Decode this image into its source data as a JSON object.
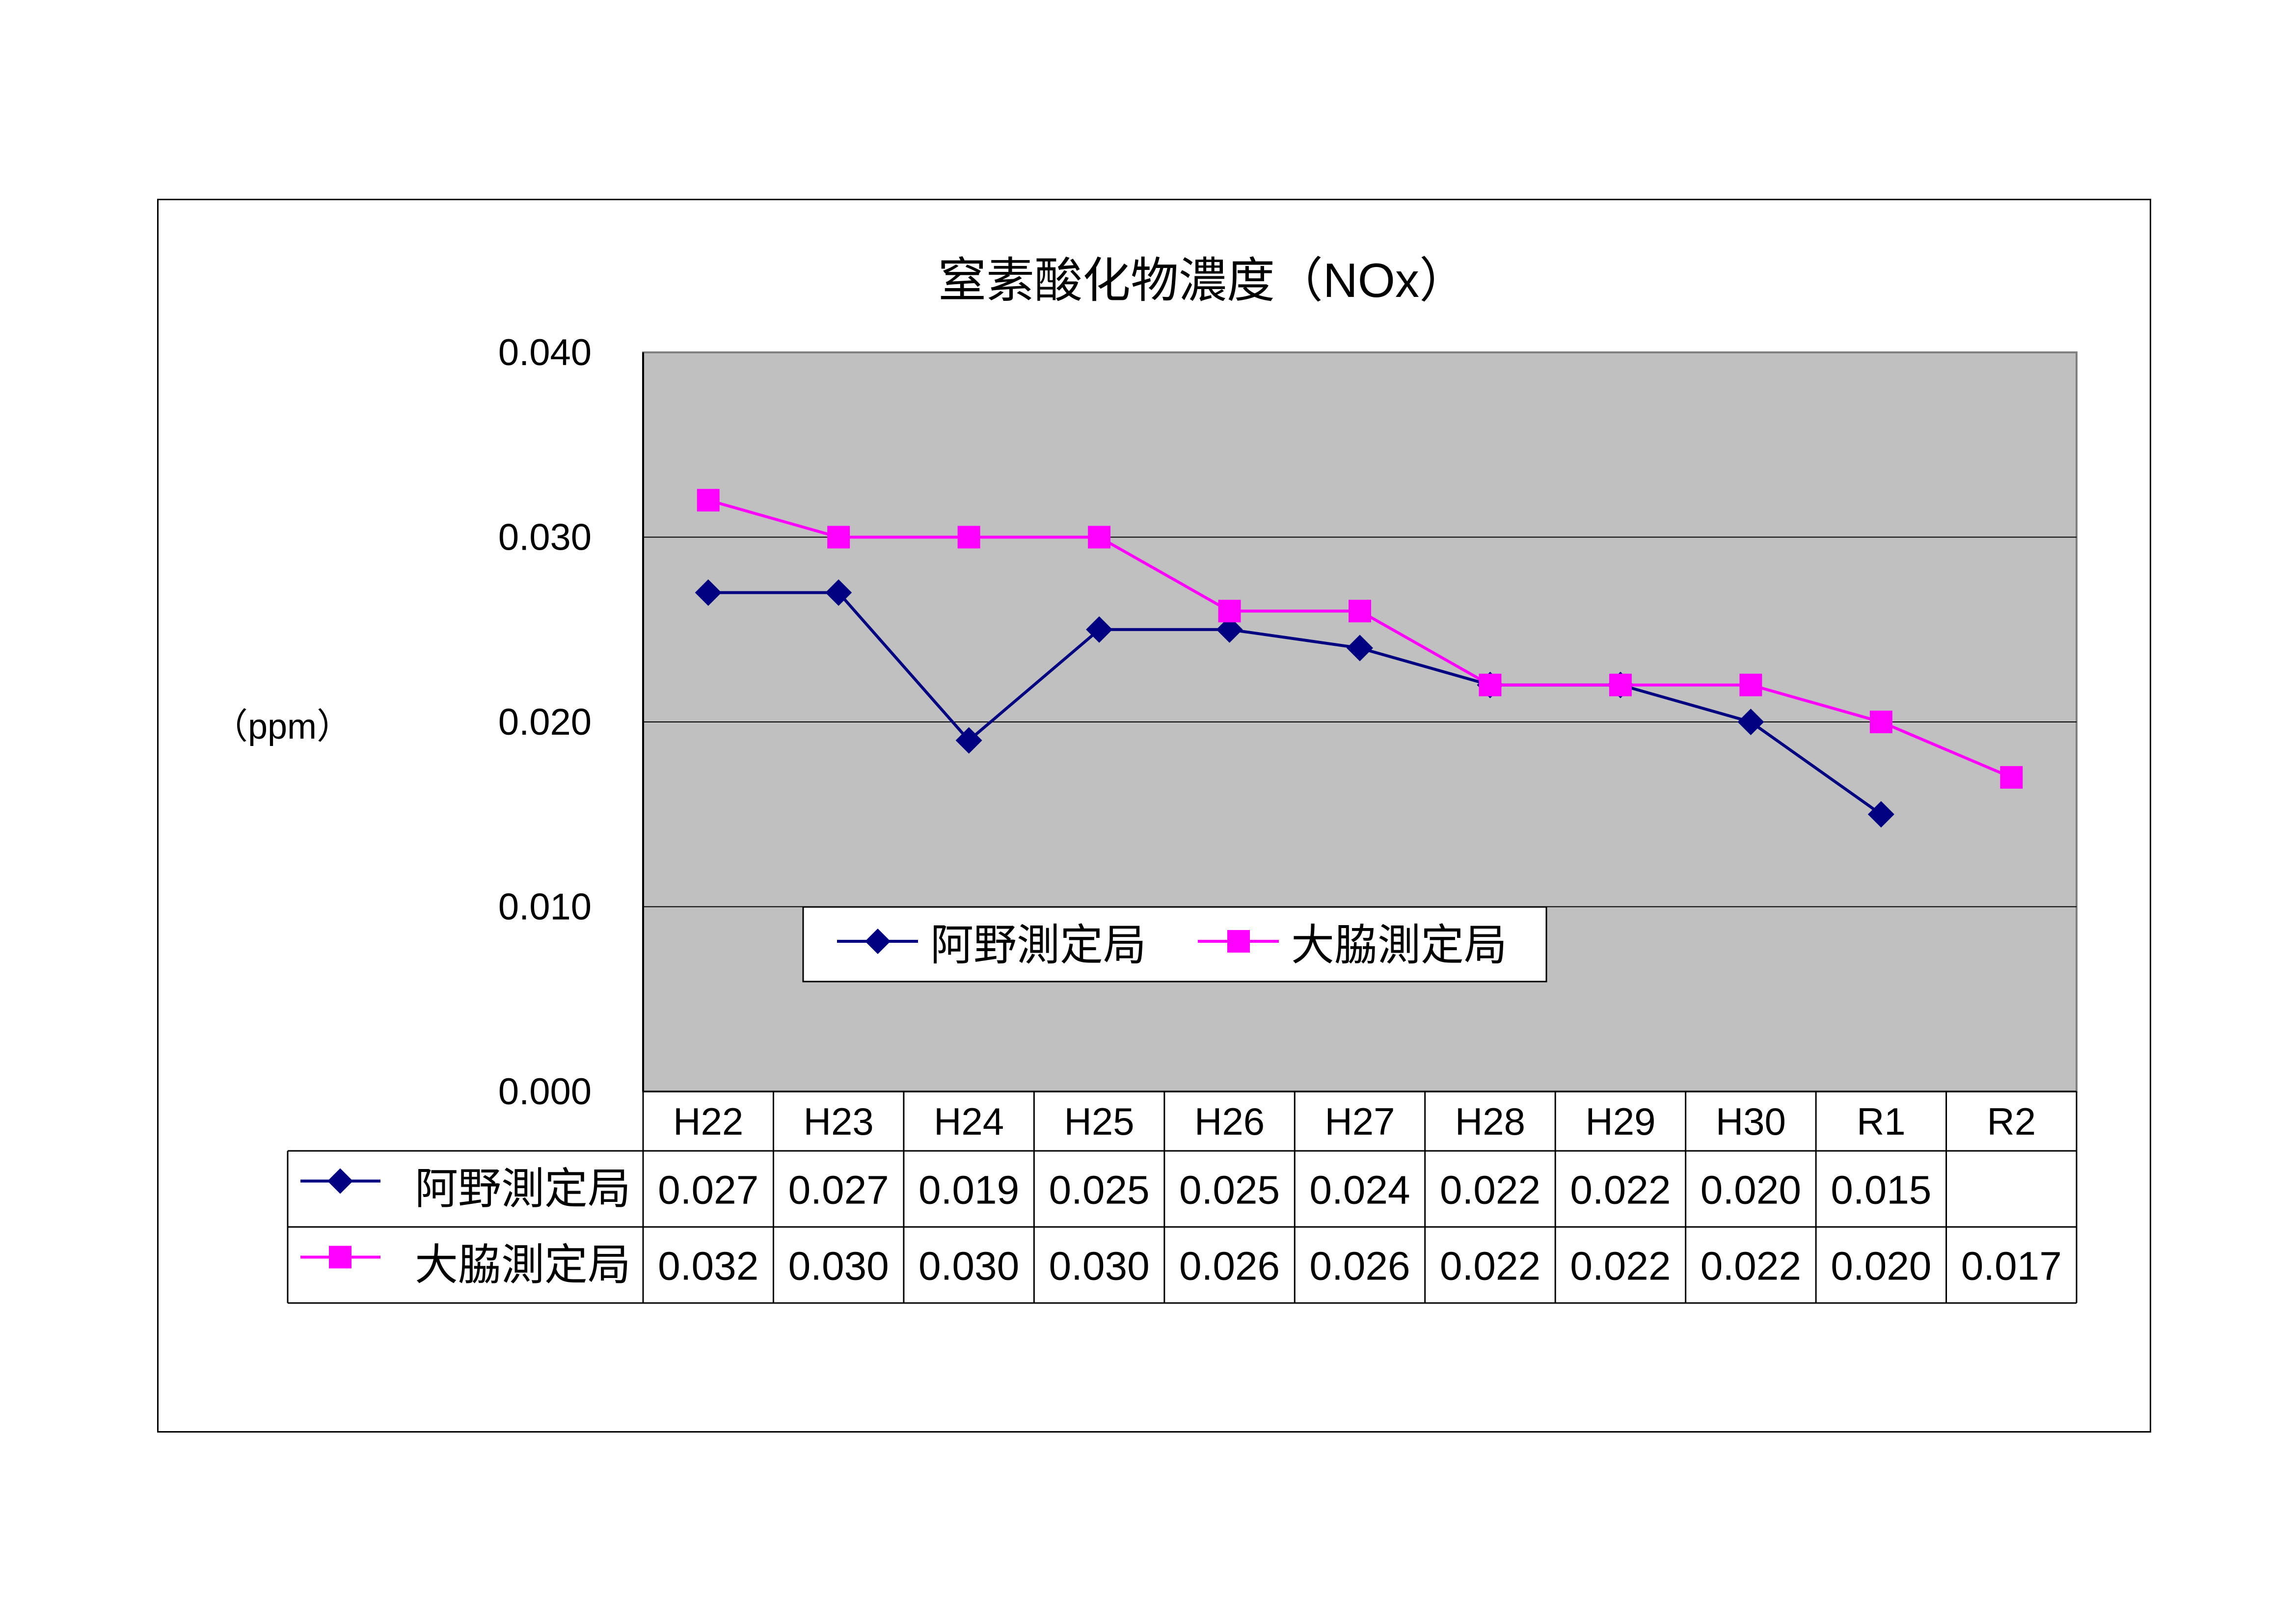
{
  "chart_data": {
    "type": "line",
    "title": "窒素酸化物濃度（NOx）",
    "ylabel": "（ppm）",
    "ylim": [
      0,
      0.04
    ],
    "yticks": [
      "0.000",
      "0.010",
      "0.020",
      "0.030",
      "0.040"
    ],
    "categories": [
      "H22",
      "H23",
      "H24",
      "H25",
      "H26",
      "H27",
      "H28",
      "H29",
      "H30",
      "R1",
      "R2"
    ],
    "series": [
      {
        "name": "阿野測定局",
        "color": "#000080",
        "marker": "diamond",
        "values": [
          0.027,
          0.027,
          0.019,
          0.025,
          0.025,
          0.024,
          0.022,
          0.022,
          0.02,
          0.015,
          null
        ],
        "labels": [
          "0.027",
          "0.027",
          "0.019",
          "0.025",
          "0.025",
          "0.024",
          "0.022",
          "0.022",
          "0.020",
          "0.015",
          ""
        ]
      },
      {
        "name": "大脇測定局",
        "color": "#ff00ff",
        "marker": "square",
        "values": [
          0.032,
          0.03,
          0.03,
          0.03,
          0.026,
          0.026,
          0.022,
          0.022,
          0.022,
          0.02,
          0.017
        ],
        "labels": [
          "0.032",
          "0.030",
          "0.030",
          "0.030",
          "0.026",
          "0.026",
          "0.022",
          "0.022",
          "0.022",
          "0.020",
          "0.017"
        ]
      }
    ],
    "plot_background": "#c0c0c0",
    "grid": true,
    "legend": "inside-bottom-center",
    "data_table": true
  }
}
